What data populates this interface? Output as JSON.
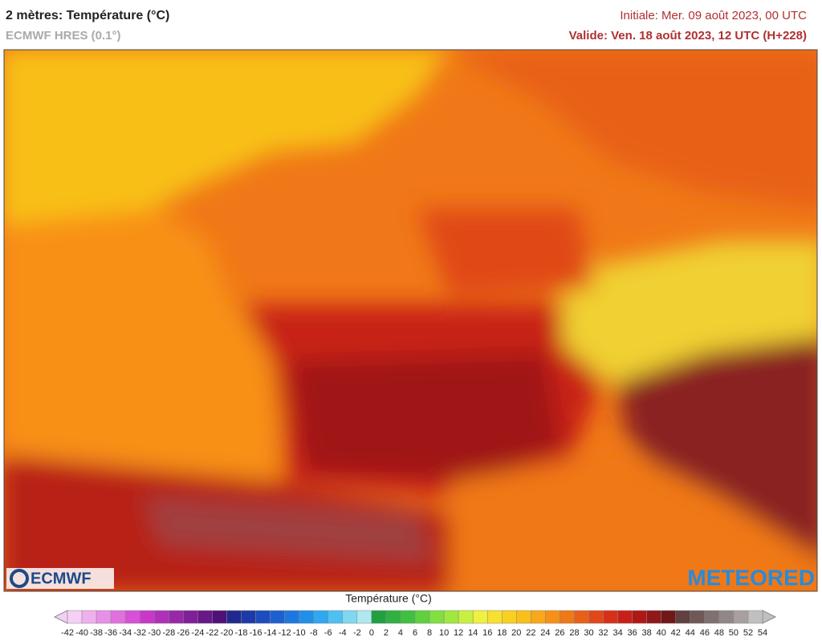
{
  "header": {
    "title": "2 mètres: Température (°C)",
    "subtitle": "ECMWF HRES (0.1°)",
    "initial": "Initiale: Mer. 09 août 2023, 00 UTC",
    "valid": "Valide: Ven. 18 août 2023, 12 UTC (H+228)"
  },
  "logos": {
    "left": "ECMWF",
    "right": "METEORED"
  },
  "colorbar": {
    "title": "Température (°C)",
    "ticks": [
      -42,
      -40,
      -38,
      -36,
      -34,
      -32,
      -30,
      -28,
      -26,
      -24,
      -22,
      -20,
      -18,
      -16,
      -14,
      -12,
      -10,
      -8,
      -6,
      -4,
      -2,
      0,
      2,
      4,
      6,
      8,
      10,
      12,
      14,
      16,
      18,
      20,
      22,
      24,
      26,
      28,
      30,
      32,
      34,
      36,
      38,
      40,
      42,
      44,
      46,
      48,
      50,
      52,
      54
    ],
    "colors": [
      "#f5d0f5",
      "#f0b0ef",
      "#e890e6",
      "#e070de",
      "#d850d8",
      "#c838c8",
      "#b030b8",
      "#9828a8",
      "#802098",
      "#681888",
      "#501078",
      "#202890",
      "#1c3aa8",
      "#1c4cc0",
      "#1c60d0",
      "#1c78e0",
      "#2090e8",
      "#30a8f0",
      "#50c0f0",
      "#80d8f0",
      "#b0e8f0",
      "#20a040",
      "#30b040",
      "#40c040",
      "#60d040",
      "#80e040",
      "#a0e840",
      "#c8f040",
      "#f0f040",
      "#f8e030",
      "#f8d020",
      "#f8c018",
      "#f8a818",
      "#f89018",
      "#f07818",
      "#e86018",
      "#e04818",
      "#d83018",
      "#c82018",
      "#b01818",
      "#901818",
      "#701818",
      "#604040",
      "#705858",
      "#807070",
      "#908888",
      "#a8a0a0",
      "#c0c0c0"
    ]
  }
}
